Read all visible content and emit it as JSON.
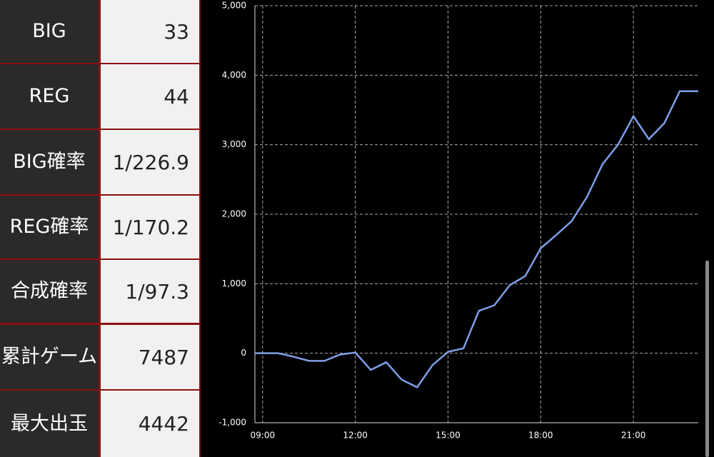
{
  "table": {
    "rows": [
      [
        "BIG",
        "33"
      ],
      [
        "REG",
        "44"
      ],
      [
        "BIG確率",
        "1/226.9"
      ],
      [
        "REG確率",
        "1/170.2"
      ],
      [
        "合成確率",
        "1/97.3"
      ],
      [
        "累計ゲーム",
        "7487"
      ],
      [
        "最大出玉",
        "4442"
      ]
    ]
  },
  "chart_data": {
    "type": "line",
    "x": [
      8.75,
      9.5,
      10.0,
      10.5,
      11.0,
      11.5,
      12.0,
      12.5,
      13.0,
      13.5,
      14.0,
      14.5,
      15.0,
      15.5,
      16.0,
      16.5,
      17.0,
      17.5,
      18.0,
      18.5,
      19.0,
      19.5,
      20.0,
      20.5,
      21.0,
      21.5,
      22.0,
      22.5,
      23.1
    ],
    "values": [
      0,
      0,
      -50,
      -110,
      -110,
      -20,
      10,
      -240,
      -130,
      -380,
      -490,
      -170,
      20,
      70,
      610,
      690,
      980,
      1110,
      1510,
      1700,
      1900,
      2250,
      2720,
      3000,
      3410,
      3080,
      3310,
      3770,
      3770
    ],
    "color": "#7f9fe8",
    "xlim": [
      8.75,
      23.1
    ],
    "xticks": [
      {
        "value": 9,
        "label": "09:00"
      },
      {
        "value": 12,
        "label": "12:00"
      },
      {
        "value": 15,
        "label": "15:00"
      },
      {
        "value": 18,
        "label": "18:00"
      },
      {
        "value": 21,
        "label": "21:00"
      }
    ],
    "ylim": [
      -1000,
      5000
    ],
    "yticks": [
      {
        "value": -1000,
        "label": "-1,000"
      },
      0,
      {
        "value": 1000,
        "label": "1,000"
      },
      {
        "value": 2000,
        "label": "2,000"
      },
      {
        "value": 3000,
        "label": "3,000"
      },
      {
        "value": 4000,
        "label": "4,000"
      },
      {
        "value": 5000,
        "label": "5,000"
      }
    ],
    "grid": true
  }
}
